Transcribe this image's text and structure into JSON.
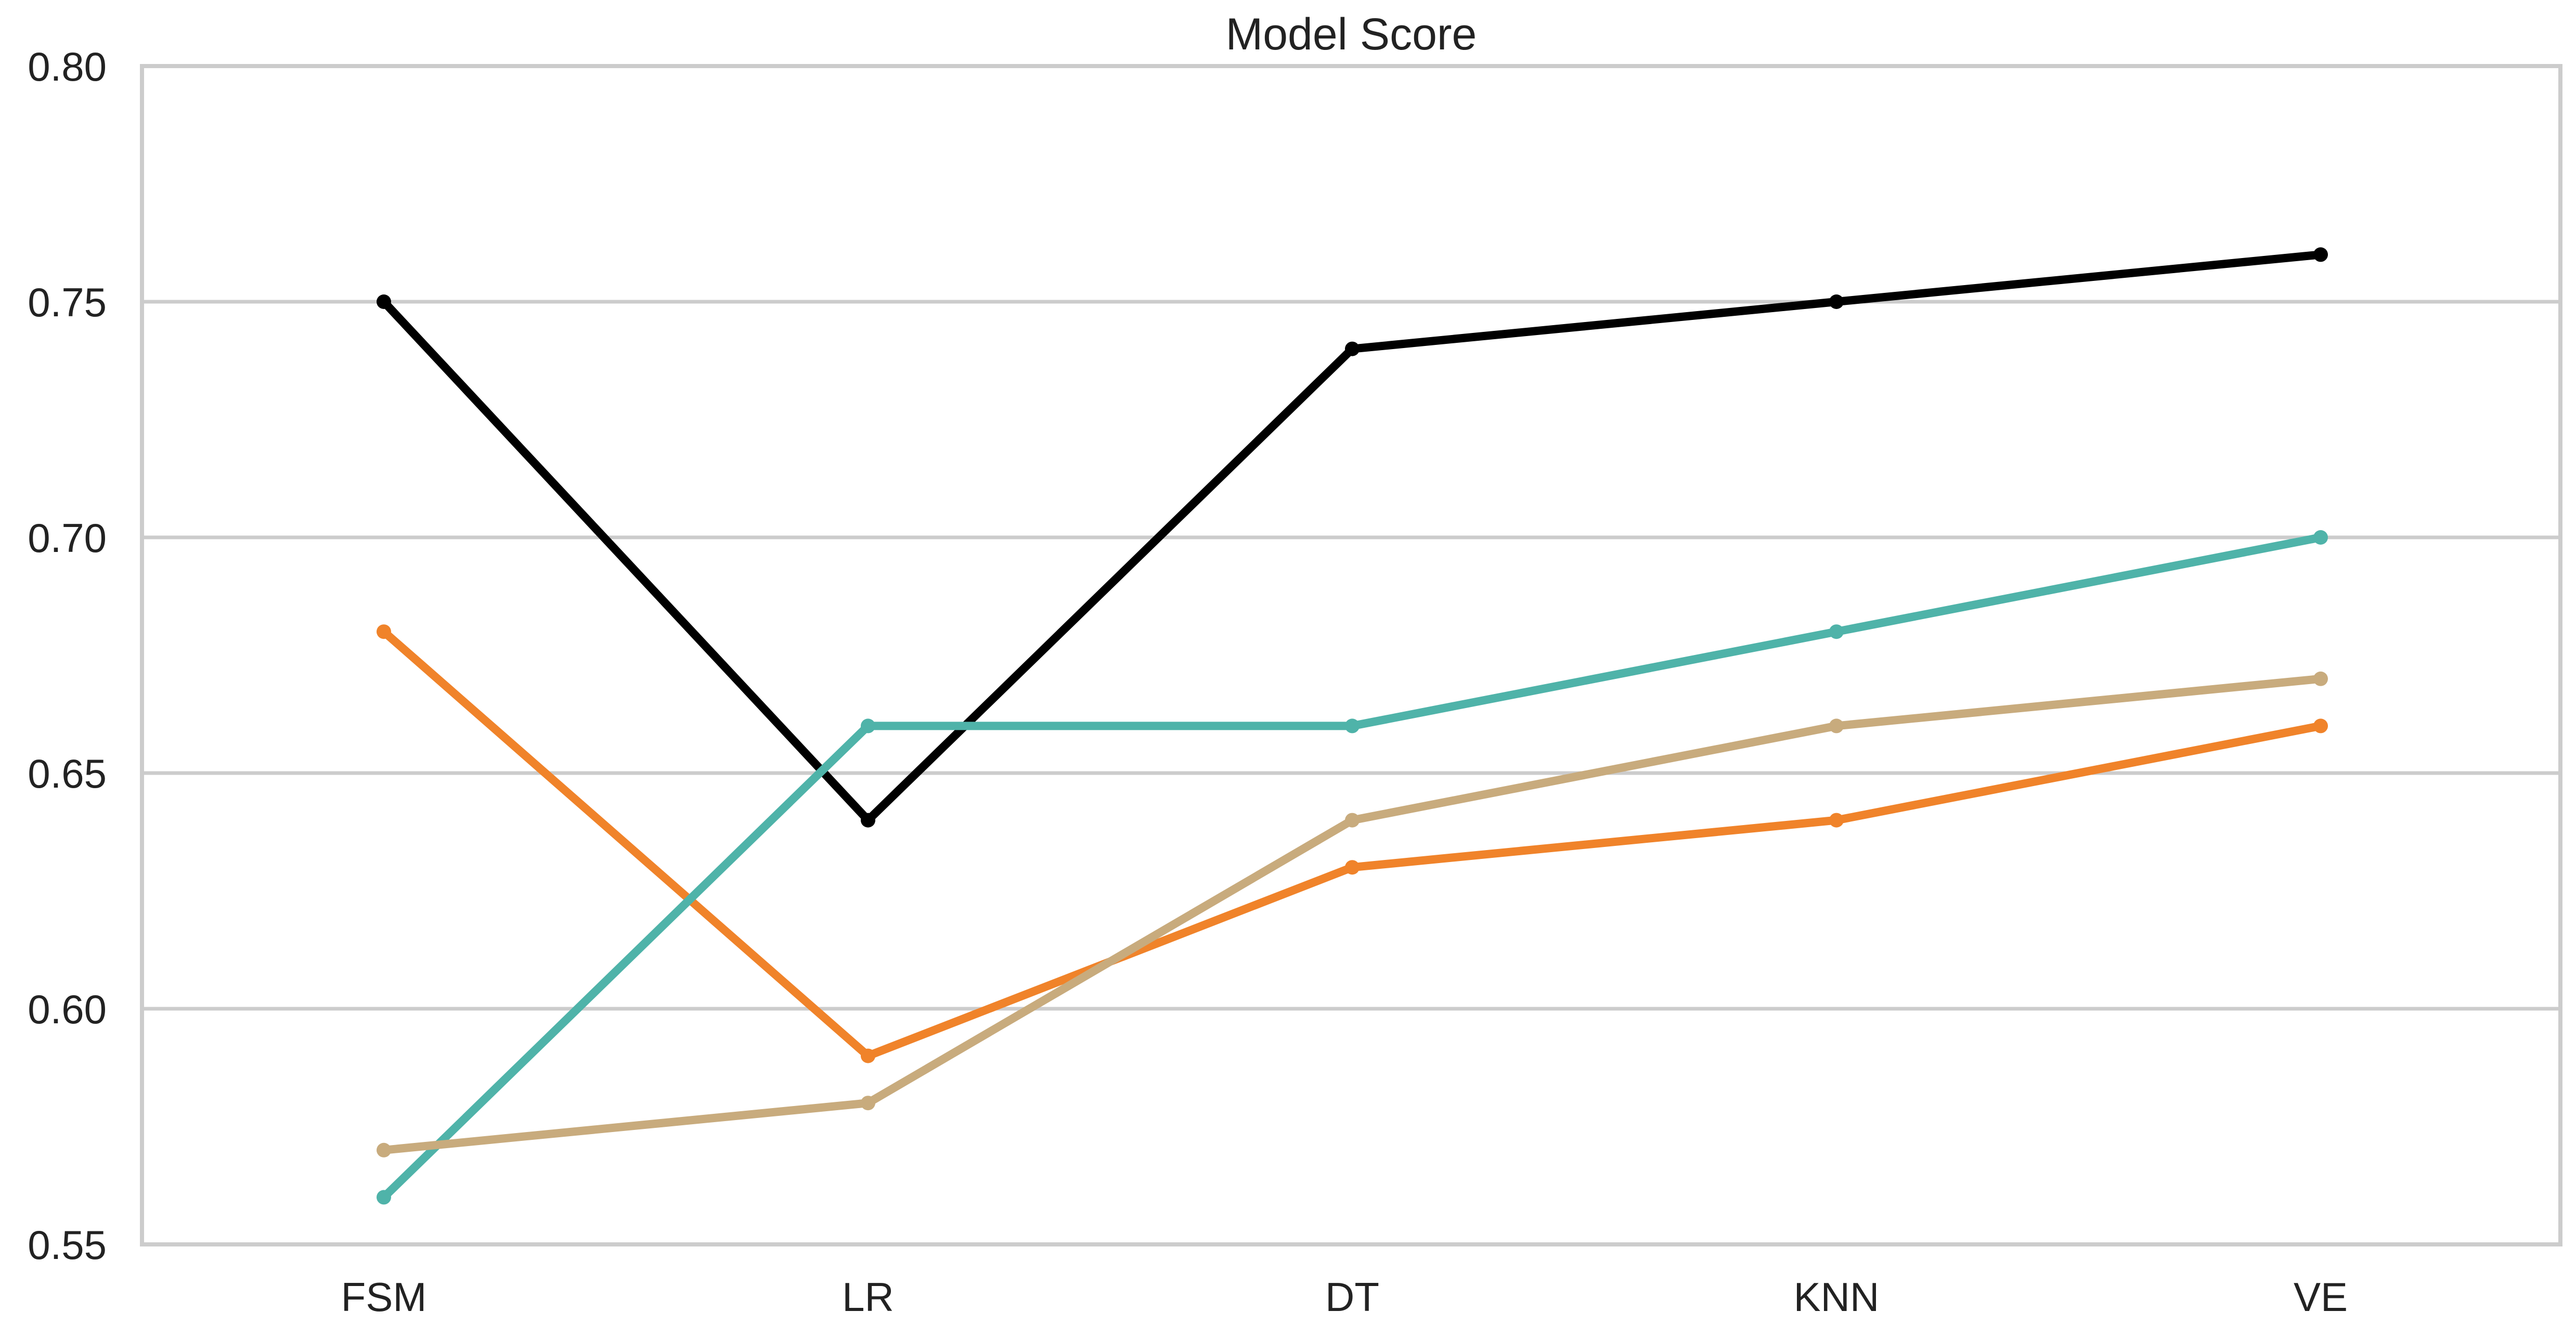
{
  "chart_data": {
    "type": "line",
    "title": "Model Score",
    "xlabel": "",
    "ylabel": "",
    "categories": [
      "FSM",
      "LR",
      "DT",
      "KNN",
      "VE"
    ],
    "ylim": [
      0.55,
      0.8
    ],
    "yticks": [
      "0.55",
      "0.60",
      "0.65",
      "0.70",
      "0.75",
      "0.80"
    ],
    "grid": "horizontal",
    "series": [
      {
        "color": "#000000",
        "values": [
          0.75,
          0.64,
          0.74,
          0.75,
          0.76
        ]
      },
      {
        "color": "#f0832a",
        "values": [
          0.68,
          0.59,
          0.63,
          0.64,
          0.66
        ]
      },
      {
        "color": "#4fb3a9",
        "values": [
          0.56,
          0.66,
          0.66,
          0.68,
          0.7
        ]
      },
      {
        "color": "#c8ab7d",
        "values": [
          0.57,
          0.58,
          0.64,
          0.66,
          0.67
        ]
      }
    ]
  }
}
